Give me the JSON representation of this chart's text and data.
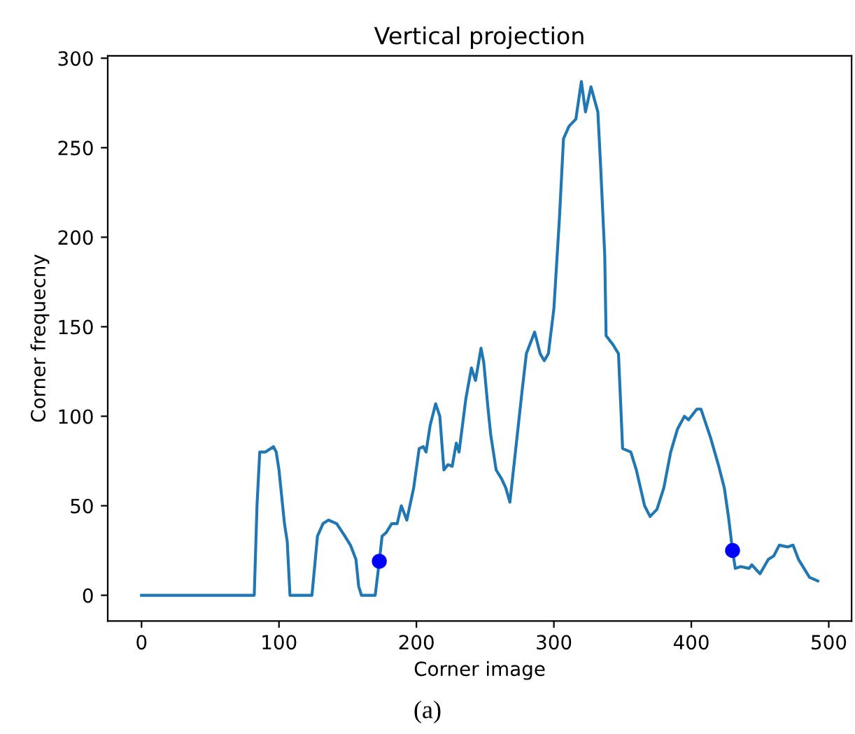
{
  "chart_data": {
    "type": "line",
    "title": "Vertical projection",
    "xlabel": "Corner image",
    "ylabel": "Corner frequecny",
    "xlim": [
      -24.6,
      516.6
    ],
    "ylim": [
      -14.35,
      301.35
    ],
    "xticks": [
      0,
      100,
      200,
      300,
      400,
      500
    ],
    "yticks": [
      0,
      50,
      100,
      150,
      200,
      250,
      300
    ],
    "grid": false,
    "annotations": [
      "(a)"
    ],
    "series": [
      {
        "color": "#1f77b4",
        "marker": "none",
        "x": [
          0,
          40,
          82,
          84,
          86,
          90,
          96,
          98,
          100,
          104,
          106,
          108,
          124,
          128,
          132,
          136,
          142,
          148,
          152,
          156,
          158,
          160,
          170,
          173,
          175,
          178,
          182,
          186,
          189,
          193,
          198,
          202,
          205,
          207,
          210,
          214,
          217,
          220,
          223,
          226,
          229,
          231,
          236,
          240,
          243,
          247,
          249,
          252,
          254,
          258,
          262,
          265,
          268,
          272,
          277,
          280,
          286,
          290,
          293,
          296,
          300,
          304,
          307,
          311,
          316,
          320,
          323,
          327,
          332,
          334,
          337,
          338,
          343,
          347,
          349,
          350,
          356,
          360,
          366,
          370,
          375,
          380,
          385,
          390,
          395,
          398,
          404,
          407,
          414,
          420,
          424,
          427,
          430,
          432,
          436,
          442,
          444,
          450,
          456,
          460,
          464,
          470,
          474,
          478,
          482,
          486,
          492
        ],
        "values": [
          0,
          0,
          0,
          50,
          80,
          80,
          83,
          80,
          70,
          40,
          30,
          0,
          0,
          33,
          40,
          42,
          40,
          33,
          28,
          20,
          5,
          0,
          0,
          19,
          33,
          35,
          40,
          40,
          50,
          42,
          60,
          82,
          83,
          80,
          95,
          107,
          100,
          70,
          73,
          72,
          85,
          80,
          110,
          127,
          120,
          138,
          130,
          105,
          90,
          70,
          65,
          60,
          52,
          80,
          115,
          135,
          147,
          135,
          131,
          135,
          160,
          210,
          255,
          262,
          266,
          287,
          270,
          284,
          270,
          240,
          190,
          145,
          140,
          135,
          100,
          82,
          80,
          70,
          50,
          44,
          48,
          60,
          80,
          93,
          100,
          98,
          104,
          104,
          88,
          72,
          60,
          44,
          25,
          15,
          16,
          15,
          17,
          12,
          20,
          22,
          28,
          27,
          28,
          20,
          15,
          10,
          8
        ]
      },
      {
        "type": "scatter",
        "color": "#0000ff",
        "marker": "circle",
        "x": [
          173,
          430
        ],
        "values": [
          19,
          25
        ]
      }
    ]
  }
}
